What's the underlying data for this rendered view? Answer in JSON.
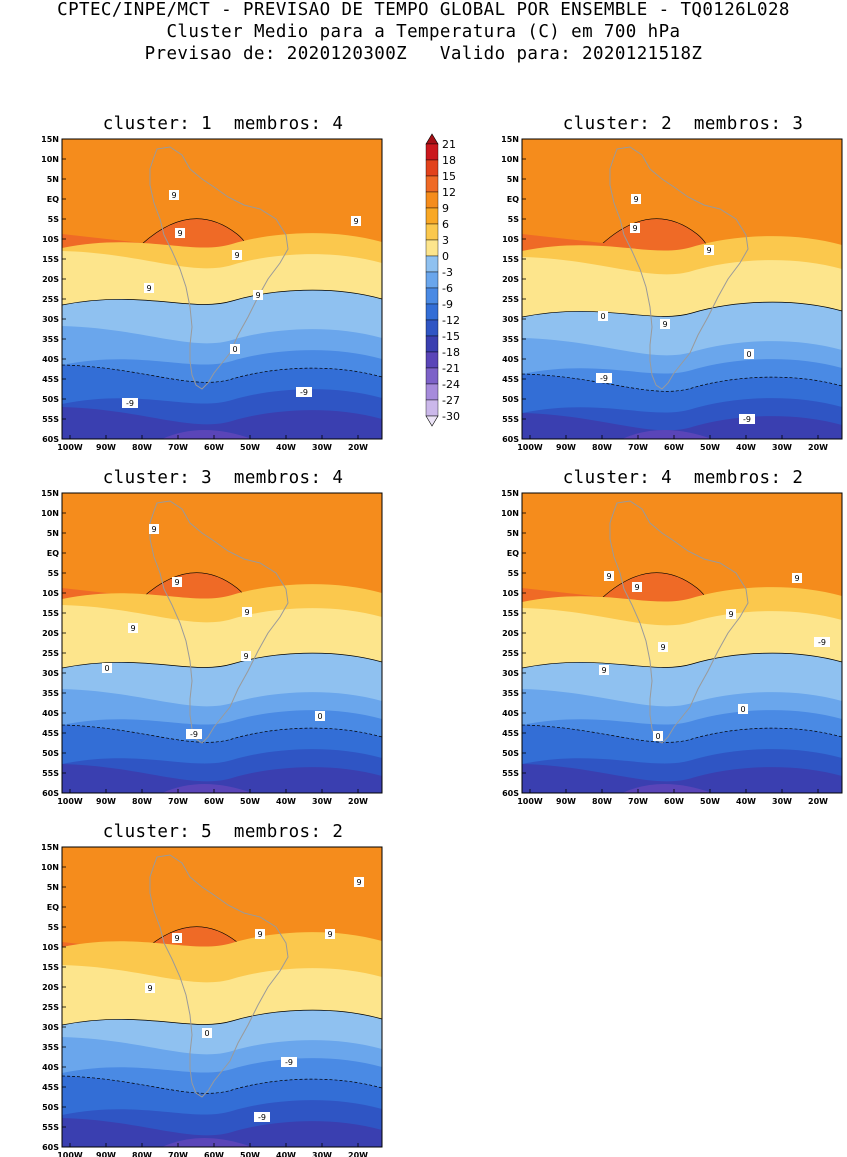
{
  "header": {
    "line1": "CPTEC/INPE/MCT - PREVISAO DE TEMPO GLOBAL POR ENSEMBLE - TQ0126L028",
    "line2": "Cluster Medio para a Temperatura (C) em 700 hPa",
    "line3": "Previsao de: 2020120300Z   Valido para: 2020121518Z"
  },
  "panels": [
    {
      "title": "cluster: 1  membros: 4",
      "contour_labels": [
        "9",
        "9",
        "9",
        "9",
        "9",
        "9",
        "0",
        "-9",
        "-9"
      ]
    },
    {
      "title": "cluster: 2  membros: 3",
      "contour_labels": [
        "9",
        "9",
        "9",
        "9",
        "0",
        "0",
        "-9",
        "-9"
      ]
    },
    {
      "title": "cluster: 3  membros: 4",
      "contour_labels": [
        "9",
        "9",
        "9",
        "9",
        "9",
        "0",
        "0",
        "-9"
      ]
    },
    {
      "title": "cluster: 4  membros: 2",
      "contour_labels": [
        "9",
        "9",
        "9",
        "9",
        "9",
        "9",
        "0",
        "0",
        "-9"
      ]
    },
    {
      "title": "cluster: 5  membros: 2",
      "contour_labels": [
        "9",
        "9",
        "9",
        "9",
        "9",
        "0",
        "-9",
        "-9"
      ]
    }
  ],
  "axes": {
    "lat_ticks": [
      "15N",
      "10N",
      "5N",
      "EQ",
      "5S",
      "10S",
      "15S",
      "20S",
      "25S",
      "30S",
      "35S",
      "40S",
      "45S",
      "50S",
      "55S",
      "60S"
    ],
    "lon_ticks": [
      "100W",
      "90W",
      "80W",
      "70W",
      "60W",
      "50W",
      "40W",
      "30W",
      "20W"
    ]
  },
  "colorbar": {
    "labels": [
      "21",
      "18",
      "15",
      "12",
      "9",
      "6",
      "3",
      "0",
      "-3",
      "-6",
      "-9",
      "-12",
      "-15",
      "-18",
      "-21",
      "-24",
      "-27",
      "-30"
    ],
    "colors": [
      "#a50f15",
      "#cb181d",
      "#e2421b",
      "#ef6a26",
      "#f58c1c",
      "#f9a825",
      "#fbc84d",
      "#fde58c",
      "#8fc1f0",
      "#6aa6ec",
      "#4a8ae4",
      "#336ed6",
      "#2f55c4",
      "#3a3fb0",
      "#5a45b8",
      "#7d62c8",
      "#a68bdb",
      "#cbb8ea",
      "#ece4f7"
    ]
  }
}
